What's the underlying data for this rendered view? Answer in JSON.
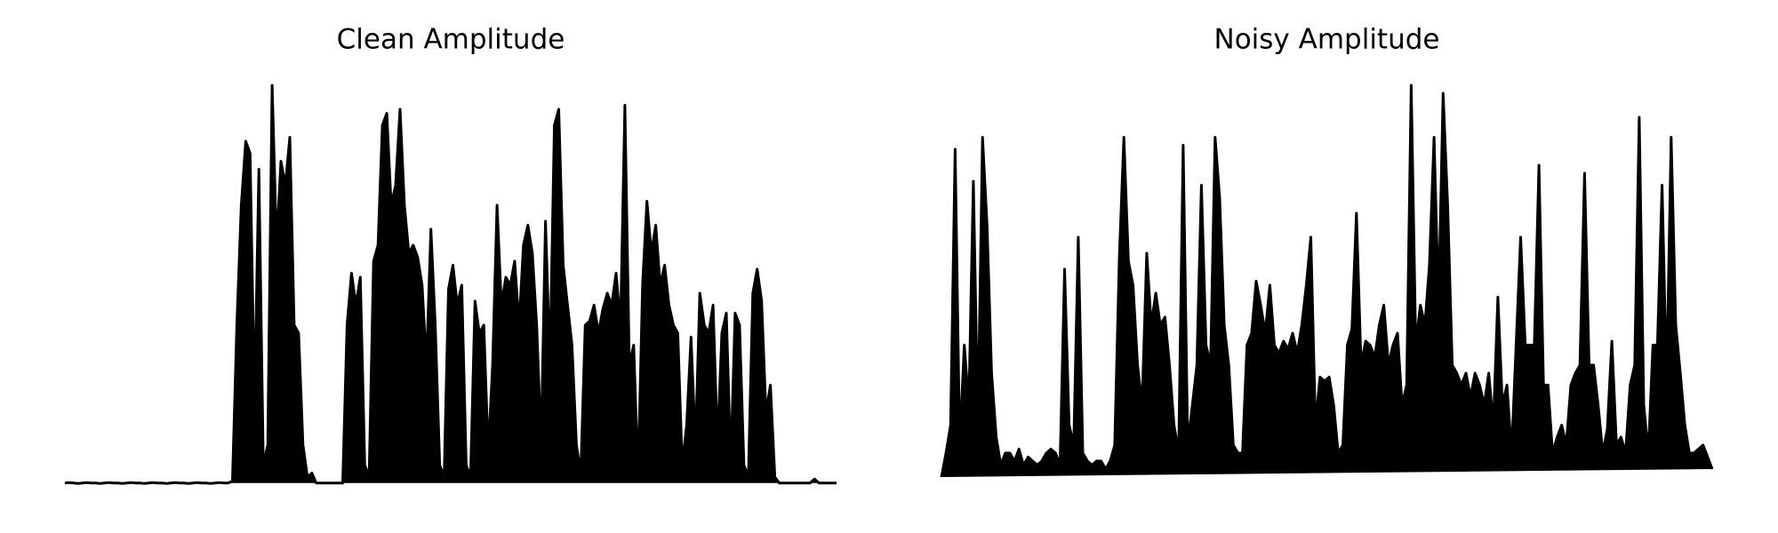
{
  "chart_data": [
    {
      "type": "area",
      "title": "Clean Amplitude",
      "color": "#000000",
      "values": [
        0.5,
        0.6,
        0.5,
        0.4,
        0.5,
        0.6,
        0.5,
        0.5,
        0.4,
        0.5,
        0.6,
        0.5,
        0.5,
        0.4,
        0.5,
        0.6,
        0.5,
        0.5,
        0.4,
        0.5,
        0.6,
        0.5,
        0.5,
        0.4,
        0.5,
        0.6,
        0.5,
        0.5,
        0.4,
        0.5,
        0.6,
        0.5,
        0.5,
        0.4,
        0.5,
        0.6,
        0.5,
        0.5,
        1,
        40,
        70,
        86,
        83,
        20,
        79,
        5,
        10,
        100,
        60,
        81,
        75,
        87,
        40,
        38,
        10,
        2,
        3,
        0.5,
        0.5,
        0.5,
        0.5,
        0.5,
        0.5,
        0.5,
        40,
        53,
        45,
        52,
        5,
        2,
        56,
        60,
        90,
        93,
        70,
        75,
        94,
        70,
        58,
        60,
        57,
        50,
        30,
        64,
        40,
        5,
        2,
        49,
        55,
        45,
        50,
        5,
        2,
        46,
        38,
        40,
        8,
        30,
        70,
        45,
        52,
        50,
        56,
        40,
        60,
        65,
        58,
        40,
        10,
        66,
        30,
        90,
        94,
        55,
        45,
        35,
        10,
        3,
        40,
        41,
        45,
        38,
        44,
        48,
        45,
        53,
        40,
        95,
        30,
        35,
        2,
        50,
        71,
        58,
        65,
        50,
        55,
        45,
        40,
        38,
        5,
        15,
        37,
        10,
        48,
        40,
        38,
        45,
        10,
        38,
        43,
        5,
        43,
        40,
        5,
        2,
        48,
        54,
        46,
        18,
        25,
        2,
        0.5,
        0.5,
        0.5,
        0.5,
        0.5,
        0.5,
        0.5,
        0.5,
        1.5,
        0.5,
        0.5,
        0.5,
        0.5,
        0.5
      ]
    },
    {
      "type": "area",
      "title": "Noisy Amplitude",
      "color": "#000000",
      "values": [
        2,
        8,
        15,
        84,
        10,
        35,
        20,
        76,
        15,
        87,
        65,
        28,
        12,
        5,
        8,
        8,
        6,
        9,
        5,
        7,
        6,
        5,
        6,
        8,
        9,
        8,
        5,
        54,
        15,
        10,
        62,
        8,
        6,
        5,
        6,
        6,
        4,
        6,
        10,
        57,
        87,
        56,
        50,
        30,
        20,
        58,
        40,
        48,
        40,
        42,
        30,
        15,
        8,
        85,
        10,
        20,
        30,
        75,
        35,
        30,
        87,
        72,
        40,
        30,
        10,
        8,
        8,
        35,
        38,
        51,
        45,
        38,
        50,
        35,
        33,
        36,
        34,
        38,
        33,
        40,
        50,
        62,
        15,
        27,
        26,
        27,
        20,
        8,
        10,
        35,
        39,
        68,
        30,
        36,
        35,
        32,
        40,
        45,
        30,
        35,
        38,
        20,
        25,
        100,
        35,
        45,
        40,
        55,
        87,
        45,
        98,
        70,
        30,
        28,
        25,
        28,
        22,
        28,
        25,
        20,
        28,
        15,
        47,
        20,
        25,
        8,
        35,
        62,
        35,
        35,
        35,
        80,
        25,
        25,
        8,
        12,
        15,
        10,
        25,
        28,
        30,
        78,
        30,
        30,
        20,
        8,
        14,
        36,
        10,
        12,
        8,
        25,
        30,
        92,
        20,
        8,
        35,
        35,
        75,
        25,
        87,
        40,
        28,
        15,
        8,
        8,
        9,
        10,
        7,
        4
      ]
    }
  ]
}
